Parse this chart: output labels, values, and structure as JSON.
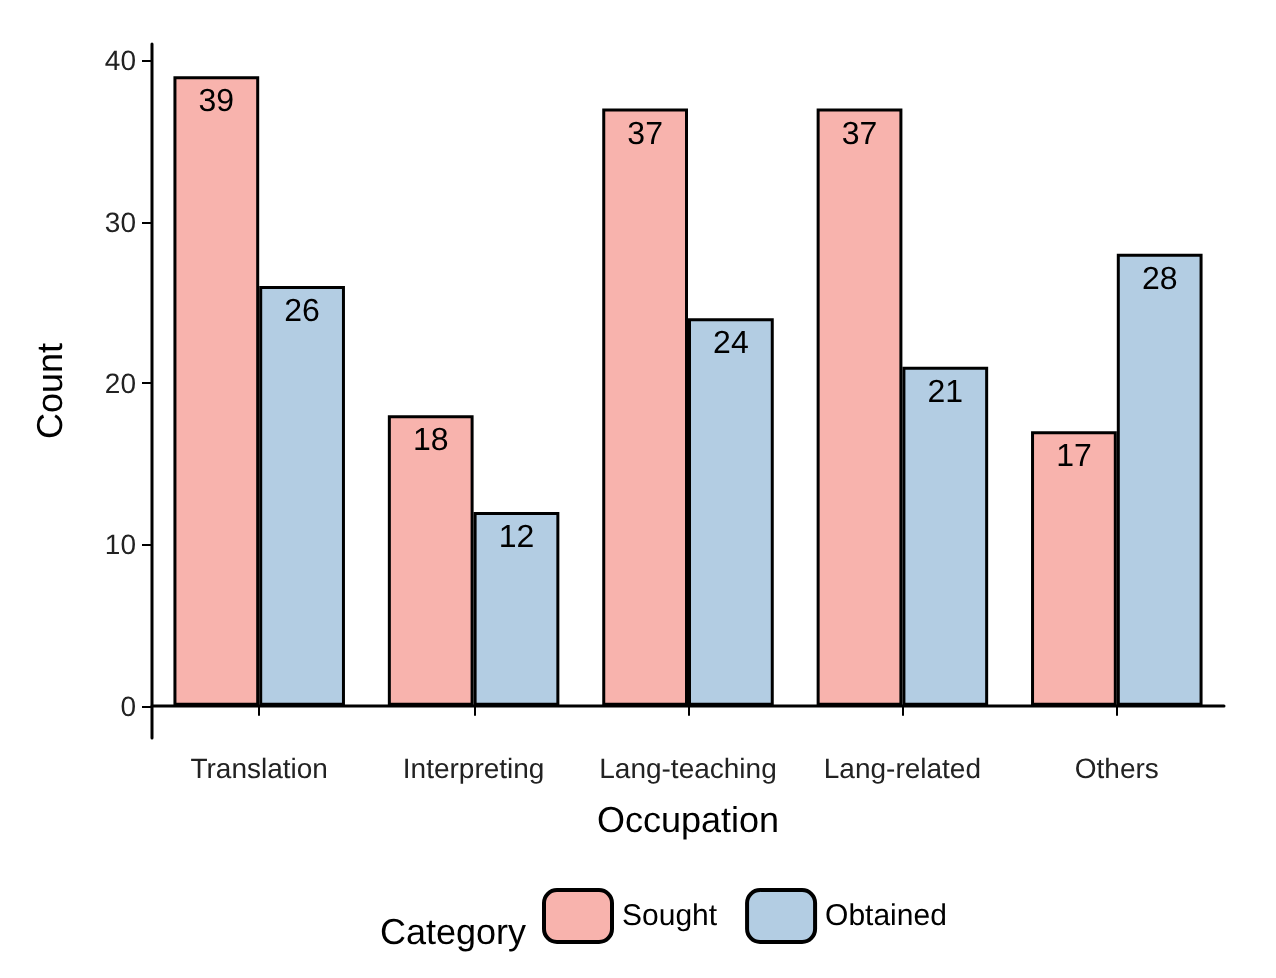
{
  "chart_data": {
    "type": "bar",
    "xlabel": "Occupation",
    "ylabel": "Count",
    "legend_title": "Category",
    "categories": [
      "Translation",
      "Interpreting",
      "Lang-teaching",
      "Lang-related",
      "Others"
    ],
    "series": [
      {
        "name": "Sought",
        "color": "#f8b3ad",
        "values": [
          39,
          18,
          37,
          37,
          17
        ]
      },
      {
        "name": "Obtained",
        "color": "#b3cde3",
        "values": [
          26,
          12,
          24,
          21,
          28
        ]
      }
    ],
    "ylim": [
      -2,
      41
    ],
    "yticks": [
      0,
      10,
      20,
      30,
      40
    ],
    "grid": false,
    "legend": "bottom",
    "data_labels": true
  }
}
